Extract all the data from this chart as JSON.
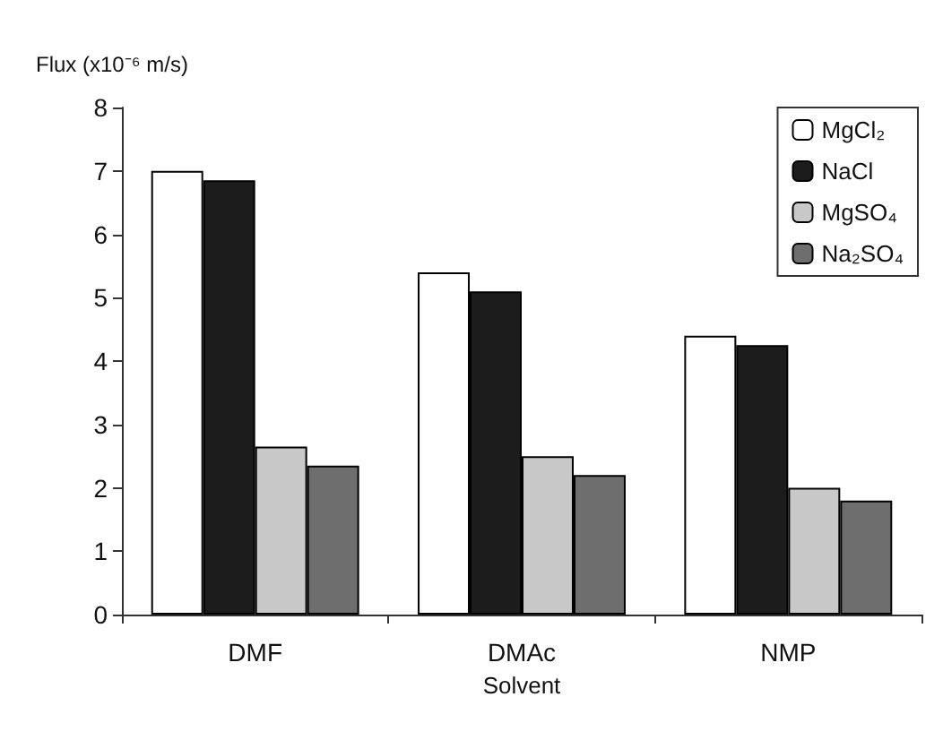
{
  "chart_data": {
    "type": "bar",
    "xlabel": "Solvent",
    "ylabel": "Flux (x10⁻⁶ m/s)",
    "categories": [
      "DMF",
      "DMAc",
      "NMP"
    ],
    "series": [
      {
        "name": "MgCl₂",
        "color": "#ffffff",
        "values": [
          7.0,
          5.4,
          4.4
        ]
      },
      {
        "name": "NaCl",
        "color": "#1c1c1c",
        "values": [
          6.85,
          5.1,
          4.25
        ]
      },
      {
        "name": "MgSO₄",
        "color": "#c8c8c8",
        "values": [
          2.65,
          2.5,
          2.0
        ]
      },
      {
        "name": "Na₂SO₄",
        "color": "#6e6e6e",
        "values": [
          2.35,
          2.2,
          1.8
        ]
      }
    ],
    "ylim": [
      0,
      8
    ],
    "yticks": [
      0,
      1,
      2,
      3,
      4,
      5,
      6,
      7,
      8
    ],
    "grid": false,
    "legend": "top right"
  }
}
